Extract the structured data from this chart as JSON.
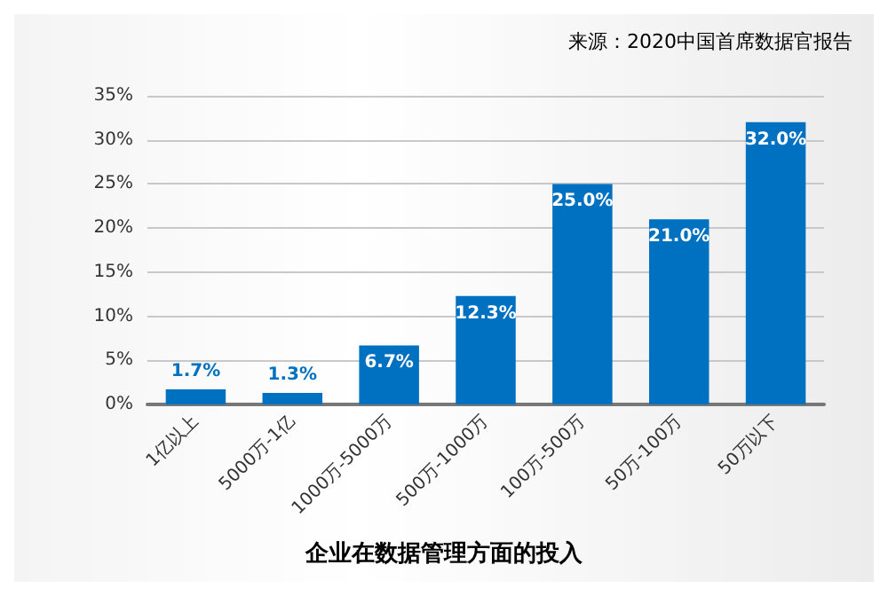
{
  "chart_data": {
    "type": "bar",
    "title": "企业在数据管理方面的投入",
    "annotations": [
      "来源：2020中国首席数据官报告"
    ],
    "categories": [
      "1亿以上",
      "5000万-1亿",
      "1000万-5000万",
      "500万-1000万",
      "100万-500万",
      "50万-100万",
      "50万以下"
    ],
    "values": [
      1.7,
      1.3,
      6.7,
      12.3,
      25.0,
      21.0,
      32.0
    ],
    "value_labels": [
      "1.7%",
      "1.3%",
      "6.7%",
      "12.3%",
      "25.0%",
      "21.0%",
      "32.0%"
    ],
    "color": "#0070c0",
    "ylim": [
      0,
      35
    ],
    "yticks": [
      {
        "value": 0,
        "label": "0%"
      },
      {
        "value": 5,
        "label": "5%"
      },
      {
        "value": 10,
        "label": "10%"
      },
      {
        "value": 15,
        "label": "15%"
      },
      {
        "value": 20,
        "label": "20%"
      },
      {
        "value": 25,
        "label": "25%"
      },
      {
        "value": 30,
        "label": "30%"
      },
      {
        "value": 35,
        "label": "35%"
      }
    ],
    "grid": "y"
  }
}
